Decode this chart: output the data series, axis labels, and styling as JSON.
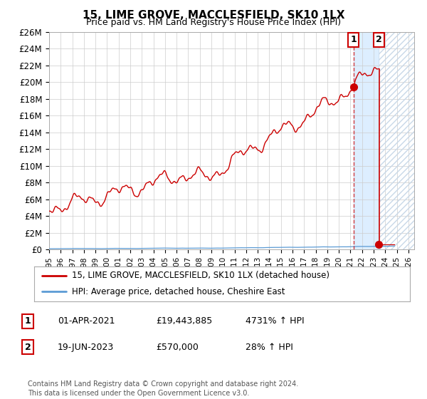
{
  "title": "15, LIME GROVE, MACCLESFIELD, SK10 1LX",
  "subtitle": "Price paid vs. HM Land Registry's House Price Index (HPI)",
  "ylim": [
    0,
    26000000
  ],
  "yticks": [
    0,
    2000000,
    4000000,
    6000000,
    8000000,
    10000000,
    12000000,
    14000000,
    16000000,
    18000000,
    20000000,
    22000000,
    24000000,
    26000000
  ],
  "ytick_labels": [
    "£0",
    "£2M",
    "£4M",
    "£6M",
    "£8M",
    "£10M",
    "£12M",
    "£14M",
    "£16M",
    "£18M",
    "£20M",
    "£22M",
    "£24M",
    "£26M"
  ],
  "xlim_start": 1995.0,
  "xlim_end": 2026.5,
  "transaction1_date": 2021.25,
  "transaction1_value": 19443885,
  "transaction2_date": 2023.46,
  "transaction2_value": 570000,
  "red_line_color": "#cc0000",
  "blue_line_color": "#5b9bd5",
  "shade_color": "#ddeeff",
  "grid_color": "#cccccc",
  "background_color": "#ffffff",
  "legend_label1": "15, LIME GROVE, MACCLESFIELD, SK10 1LX (detached house)",
  "legend_label2": "HPI: Average price, detached house, Cheshire East",
  "footnote": "Contains HM Land Registry data © Crown copyright and database right 2024.\nThis data is licensed under the Open Government Licence v3.0.",
  "table_rows": [
    {
      "num": "1",
      "date": "01-APR-2021",
      "price": "£19,443,885",
      "pct": "4731% ↑ HPI"
    },
    {
      "num": "2",
      "date": "19-JUN-2023",
      "price": "£570,000",
      "pct": "28% ↑ HPI"
    }
  ]
}
